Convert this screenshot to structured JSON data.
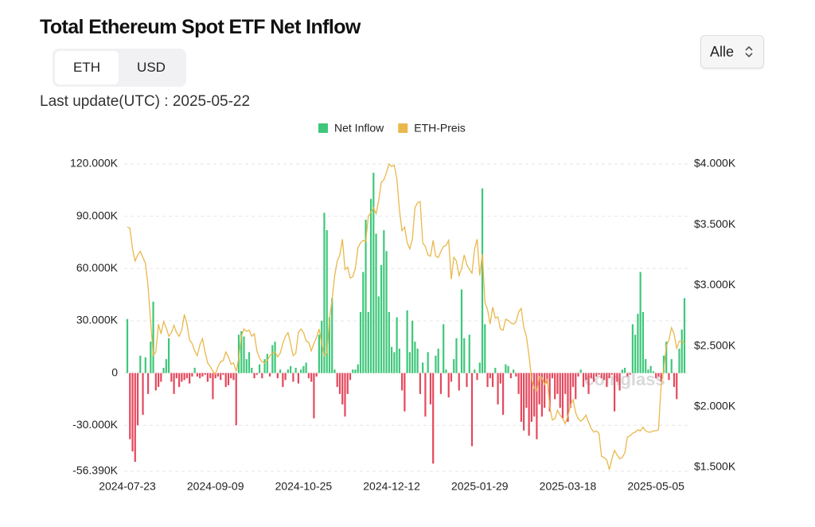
{
  "header": {
    "title": "Total Ethereum Spot ETF Net Inflow",
    "tabs": [
      "ETH",
      "USD"
    ],
    "last_update": "Last update(UTC) : 2025-05-22",
    "dropdown": "Alle"
  },
  "watermark": "coinglass",
  "chart_data": {
    "type": "bar",
    "categories": [
      "2024-07-23",
      null,
      null,
      null,
      null,
      null,
      null,
      null,
      null,
      null,
      null,
      null,
      null,
      null,
      null,
      null,
      null,
      null,
      null,
      null,
      null,
      null,
      null,
      null,
      null,
      null,
      null,
      null,
      null,
      null,
      null,
      null,
      null,
      null,
      "2024-09-09",
      null,
      null,
      null,
      null,
      null,
      null,
      null,
      null,
      null,
      null,
      null,
      null,
      null,
      null,
      null,
      null,
      null,
      null,
      null,
      null,
      null,
      null,
      null,
      null,
      null,
      null,
      null,
      null,
      null,
      null,
      null,
      null,
      null,
      "2024-10-25",
      null,
      null,
      null,
      null,
      null,
      null,
      null,
      null,
      null,
      null,
      null,
      null,
      null,
      null,
      null,
      null,
      null,
      null,
      null,
      null,
      null,
      null,
      null,
      null,
      null,
      null,
      null,
      null,
      null,
      null,
      null,
      null,
      null,
      "2024-12-12",
      null,
      null,
      null,
      null,
      null,
      null,
      null,
      null,
      null,
      null,
      null,
      null,
      null,
      null,
      null,
      null,
      null,
      null,
      null,
      null,
      null,
      null,
      null,
      null,
      null,
      null,
      null,
      null,
      null,
      null,
      null,
      null,
      null,
      "2025-01-29",
      null,
      null,
      null,
      null,
      null,
      null,
      null,
      null,
      null,
      null,
      null,
      null,
      null,
      null,
      null,
      null,
      null,
      null,
      null,
      null,
      null,
      null,
      null,
      null,
      null,
      null,
      null,
      null,
      null,
      null,
      null,
      null,
      null,
      "2025-03-18",
      null,
      null,
      null,
      null,
      null,
      null,
      null,
      null,
      null,
      null,
      null,
      null,
      null,
      null,
      null,
      null,
      null,
      null,
      null,
      null,
      null,
      null,
      null,
      null,
      null,
      null,
      null,
      null,
      null,
      null,
      null,
      null,
      null,
      "2025-05-05",
      null,
      null,
      null,
      null,
      null,
      null,
      null,
      null,
      null,
      null,
      null
    ],
    "series": [
      {
        "name": "Net Inflow",
        "type": "bar",
        "color": "#3ec77a",
        "negative_color": "#e5485d",
        "values": [
          31000,
          -38000,
          -45000,
          -51000,
          -30000,
          10000,
          -24000,
          9000,
          -12000,
          18000,
          41000,
          -10000,
          -8000,
          -5000,
          3000,
          8000,
          20000,
          -5000,
          -12000,
          -3000,
          -8000,
          -5000,
          -4000,
          -3000,
          -6000,
          -2000,
          3000,
          -2000,
          -3000,
          -2000,
          -1000,
          -5000,
          -3000,
          -15000,
          -3000,
          -2000,
          -4000,
          -1000,
          -8000,
          -7000,
          -3000,
          -4000,
          -30000,
          22000,
          24000,
          21000,
          8000,
          12000,
          3000,
          -3000,
          -1000,
          5000,
          -3000,
          8000,
          11000,
          -2000,
          16000,
          18000,
          -3000,
          2000,
          -8000,
          -4000,
          2000,
          4000,
          -5000,
          3000,
          -6000,
          2000,
          4000,
          6000,
          -3000,
          -5000,
          -26000,
          -2000,
          22000,
          30000,
          92000,
          82000,
          32000,
          43000,
          2000,
          -8000,
          -12000,
          -18000,
          -25000,
          -12000,
          -4000,
          2000,
          2000,
          5000,
          35000,
          58000,
          88000,
          35000,
          100000,
          115000,
          80000,
          44000,
          62000,
          82000,
          70000,
          35000,
          15000,
          12000,
          32000,
          14000,
          -10000,
          -22000,
          36000,
          12000,
          30000,
          18000,
          14000,
          -12000,
          6000,
          -25000,
          12000,
          -18000,
          -52000,
          10000,
          14000,
          -12000,
          28000,
          2000,
          -14000,
          -5000,
          8000,
          20000,
          -10000,
          48000,
          20000,
          -8000,
          22000,
          -42000,
          2000,
          -4000,
          6000,
          106000,
          28000,
          -8000,
          -3000,
          -8000,
          3000,
          -18000,
          -6000,
          -24000,
          5000,
          4000,
          -3000,
          2000,
          -2000,
          -12000,
          -28000,
          -33000,
          -20000,
          -36000,
          -28000,
          -25000,
          -38000,
          -18000,
          -25000,
          -20000,
          -6000,
          -22000,
          -3000,
          -15000,
          -12000,
          -20000,
          -26000,
          -12000,
          -28000,
          -20000,
          -8000,
          -15000,
          -2000,
          2000,
          -8000,
          -4000,
          -12000,
          -3000,
          -5000,
          -2000,
          -1000,
          -3000,
          -4000,
          -8000,
          -3000,
          -1000,
          -22000,
          -5000,
          -10000,
          2000,
          3000,
          -2000,
          -1000,
          28000,
          22000,
          34000,
          58000,
          35000,
          8000,
          2000,
          4000,
          1000,
          -3000,
          -2000,
          -5000,
          10000,
          18000,
          -4000,
          8000,
          -8000,
          -15000,
          14000,
          25000,
          43000
        ]
      },
      {
        "name": "ETH-Preis",
        "type": "line",
        "color": "#e9b84c",
        "axis": "y2",
        "values": [
          3480,
          3470,
          3300,
          3200,
          3250,
          3280,
          3230,
          3180,
          2990,
          2700,
          2420,
          2450,
          2680,
          2600,
          2700,
          2650,
          2580,
          2610,
          2670,
          2610,
          2580,
          2630,
          2760,
          2680,
          2550,
          2520,
          2460,
          2420,
          2510,
          2560,
          2450,
          2360,
          2330,
          2290,
          2270,
          2330,
          2370,
          2380,
          2450,
          2410,
          2350,
          2360,
          2290,
          2400,
          2580,
          2640,
          2620,
          2630,
          2580,
          2600,
          2460,
          2400,
          2370,
          2360,
          2380,
          2420,
          2440,
          2450,
          2410,
          2440,
          2520,
          2580,
          2610,
          2520,
          2420,
          2440,
          2610,
          2640,
          2610,
          2540,
          2530,
          2460,
          2520,
          2570,
          2640,
          2520,
          2420,
          2440,
          2720,
          2880,
          3080,
          3200,
          3250,
          3380,
          3130,
          3150,
          3060,
          3070,
          3140,
          3310,
          3350,
          3370,
          3360,
          3570,
          3600,
          3640,
          3590,
          3700,
          3850,
          3870,
          3930,
          4000,
          3980,
          3990,
          3880,
          3620,
          3450,
          3480,
          3350,
          3300,
          3380,
          3640,
          3680,
          3690,
          3350,
          3320,
          3250,
          3240,
          3370,
          3240,
          3230,
          3280,
          3320,
          3330,
          3370,
          3050,
          3230,
          3200,
          3080,
          3140,
          3250,
          3170,
          3130,
          3100,
          3300,
          3380,
          3080,
          3260,
          2860,
          2800,
          2680,
          2820,
          2730,
          2740,
          2640,
          2630,
          2720,
          2710,
          2690,
          2680,
          2700,
          2780,
          2810,
          2650,
          2580,
          2420,
          2230,
          2150,
          2130,
          2250,
          2240,
          2180,
          2230,
          2000,
          1890,
          1900,
          1970,
          1930,
          1900,
          1860,
          1920,
          2010,
          2060,
          1950,
          1900,
          1880,
          1900,
          1930,
          1870,
          1820,
          1790,
          1800,
          1780,
          1590,
          1580,
          1560,
          1480,
          1570,
          1640,
          1600,
          1570,
          1580,
          1620,
          1750,
          1760,
          1780,
          1790,
          1810,
          1800,
          1830,
          1800,
          1790,
          1790,
          1800,
          1800,
          1810,
          2180,
          2300,
          2500,
          2550,
          2650,
          2600,
          2480,
          2540,
          2540,
          2520
        ]
      }
    ],
    "ylim": [
      -56390,
      120000
    ],
    "yticks": [
      {
        "value": -56390,
        "label": "-56.390K"
      },
      {
        "value": -30000,
        "label": "-30.000K"
      },
      0,
      {
        "value": 30000,
        "label": "30.000K"
      },
      {
        "value": 60000,
        "label": "60.000K"
      },
      {
        "value": 90000,
        "label": "90.000K"
      },
      {
        "value": 120000,
        "label": "120.000K"
      }
    ],
    "y2lim": [
      1467,
      4000
    ],
    "y2ticks": [
      {
        "value": 1500,
        "label": "$1.500K"
      },
      {
        "value": 2000,
        "label": "$2.000K"
      },
      {
        "value": 2500,
        "label": "$2.500K"
      },
      {
        "value": 3000,
        "label": "$3.000K"
      },
      {
        "value": 3500,
        "label": "$3.500K"
      },
      {
        "value": 4000,
        "label": "$4.000K"
      }
    ],
    "grid": true,
    "legend": "top"
  }
}
